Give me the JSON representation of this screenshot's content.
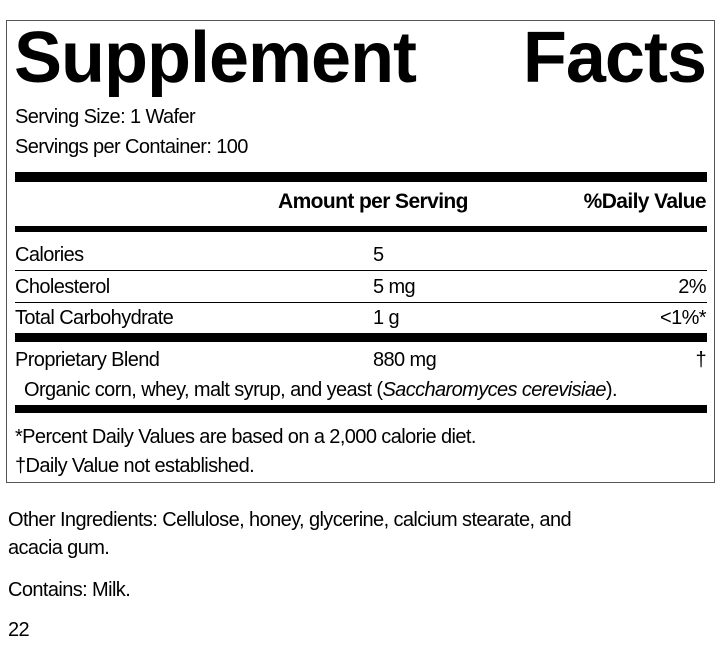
{
  "panel": {
    "title_word1": "Supplement",
    "title_word2": "Facts",
    "serving_size": "Serving Size: 1 Wafer",
    "servings_per_container": "Servings per Container: 100",
    "header": {
      "amount": "Amount per Serving",
      "dv": "%Daily Value"
    },
    "rows": [
      {
        "name": "Calories",
        "amount": "5",
        "dv": ""
      },
      {
        "name": "Cholesterol",
        "amount": "5 mg",
        "dv": "2%"
      },
      {
        "name": "Total Carbohydrate",
        "amount": "1 g",
        "dv": "<1%*"
      },
      {
        "name": "Proprietary Blend",
        "amount": "880 mg",
        "dv": "†"
      }
    ],
    "blend_ingredients_prefix": "Organic corn, whey, malt syrup, and yeast (",
    "blend_ingredients_italic": "Saccharomyces cerevisiae",
    "blend_ingredients_suffix": ").",
    "footnote1": "*Percent Daily Values are based on a 2,000 calorie diet.",
    "footnote2": "†Daily Value not established."
  },
  "other_ingredients_line1": "Other Ingredients: Cellulose, honey, glycerine, calcium stearate, and",
  "other_ingredients_line2": "acacia gum.",
  "contains": "Contains: Milk.",
  "page_number": "22"
}
